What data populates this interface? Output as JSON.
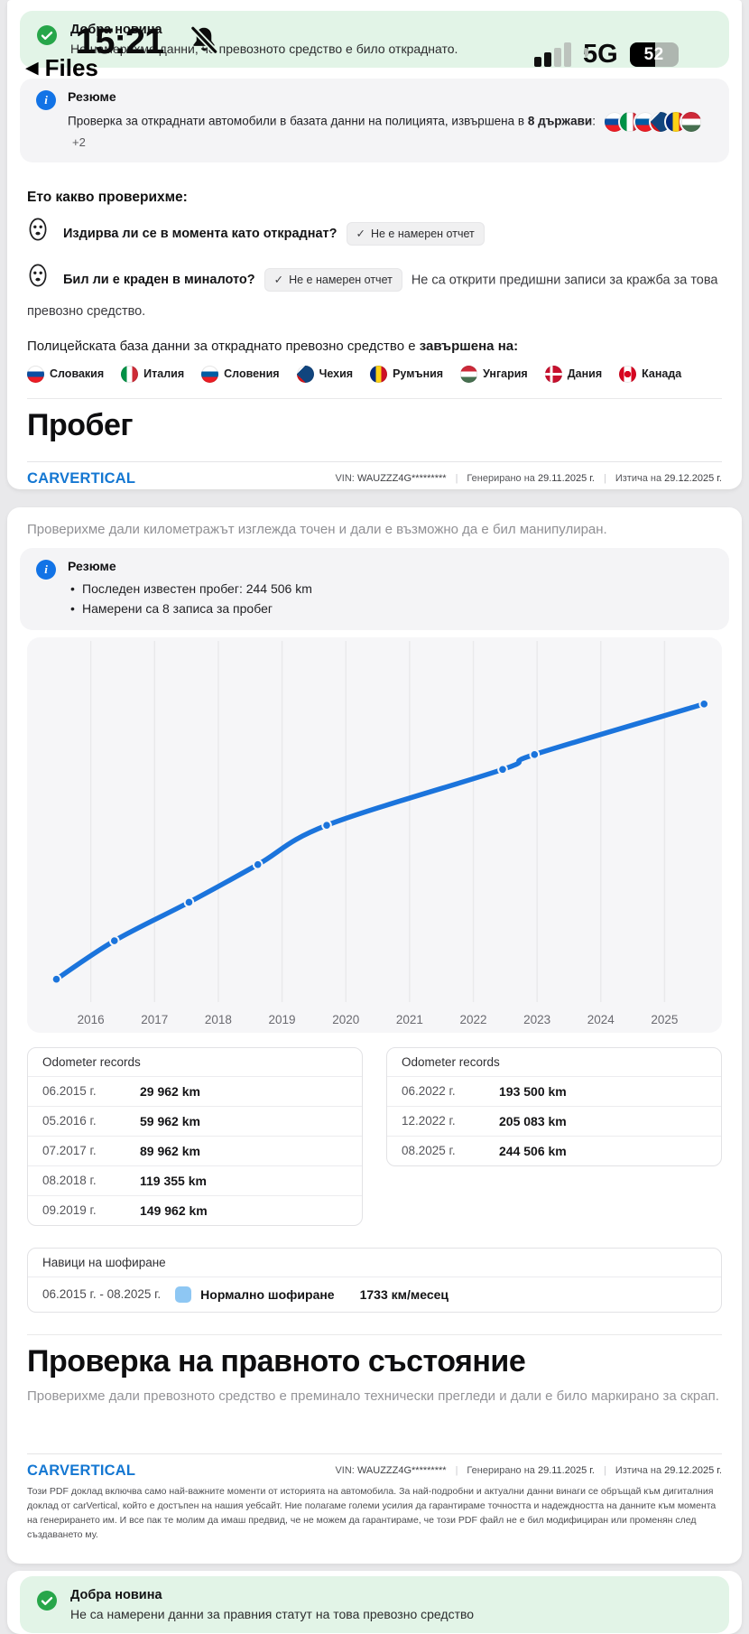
{
  "status_bar": {
    "time": "15:21",
    "back_label": "Files",
    "network": "5G",
    "battery_percent": "52"
  },
  "icons": {
    "back_arrow": "◀",
    "check": "✓",
    "info": "i",
    "bullet": "•"
  },
  "theme": {
    "accent_blue": "#1273e6",
    "chart_line_blue": "#1b74dc",
    "success_green": "#27a64a",
    "banner_green_bg": "#e2f4e7",
    "legend_light_blue": "#8ec7f3",
    "logo_blue": "#1477d2"
  },
  "page1": {
    "banner": {
      "title": "Добра новина",
      "text": "Не намерихме данни, че превозното средство е било откраднато."
    },
    "summary": {
      "title": "Резюме",
      "text": "Проверка за откраднати автомобили в базата данни на полицията, извършена в",
      "bold": "8 държави",
      "colon": ":",
      "flags": [
        "sk",
        "it",
        "si",
        "cz",
        "ro",
        "hu"
      ],
      "more": "+2"
    },
    "checks_heading": "Ето какво проверихме:",
    "checks": [
      {
        "question": "Издирва ли се в момента като откраднат?",
        "badge": "Не е намерен отчет",
        "note": ""
      },
      {
        "question": "Бил ли е краден в миналото?",
        "badge": "Не е намерен отчет",
        "note": "Не са открити предишни записи за кражба за това превозно средство."
      }
    ],
    "db_text": "Полицейската база данни за откраднато превозно средство е",
    "db_bold": "завършена на:",
    "countries": [
      {
        "flag": "sk",
        "name": "Словакия"
      },
      {
        "flag": "it",
        "name": "Италия"
      },
      {
        "flag": "si",
        "name": "Словения"
      },
      {
        "flag": "cz",
        "name": "Чехия"
      },
      {
        "flag": "ro",
        "name": "Румъния"
      },
      {
        "flag": "hu",
        "name": "Унгария"
      },
      {
        "flag": "dk",
        "name": "Дания"
      },
      {
        "flag": "ca",
        "name": "Канада"
      }
    ],
    "section_heading": "Пробег"
  },
  "footer": {
    "logo": "CARVERTICAL",
    "vin_label": "VIN:",
    "vin_value": "WAUZZZ4G*********",
    "generated_label": "Генерирано на",
    "generated_value": "29.11.2025 г.",
    "expires_label": "Изтича на",
    "expires_value": "29.12.2025 г.",
    "disclaimer": "Този PDF доклад включва само най-важните моменти от историята на автомобила. За най-подробни и актуални данни винаги се обръщай към дигиталния доклад от carVertical, който е достъпен на нашия уебсайт. Ние полагаме големи усилия да гарантираме точността и надеждността на данните към момента на генерирането им. И все пак те молим да имаш предвид, че не можем да гарантираме, че този PDF файл не е бил модифициран или променян след създаването му."
  },
  "page2": {
    "intro": "Проверихме дали километражът изглежда точен и дали е възможно да е бил манипулиран.",
    "summary": {
      "title": "Резюме",
      "bullets": [
        "Последен известен пробег: 244 506 km",
        "Намерени са 8 записа за пробег"
      ]
    },
    "odometer_tables": [
      {
        "title": "Odometer records",
        "rows": [
          {
            "date": "06.2015 г.",
            "value": "29 962 km"
          },
          {
            "date": "05.2016 г.",
            "value": "59 962 km"
          },
          {
            "date": "07.2017 г.",
            "value": "89 962 km"
          },
          {
            "date": "08.2018 г.",
            "value": "119 355 km"
          },
          {
            "date": "09.2019 г.",
            "value": "149 962 km"
          }
        ]
      },
      {
        "title": "Odometer records",
        "rows": [
          {
            "date": "06.2022 г.",
            "value": "193 500 km"
          },
          {
            "date": "12.2022 г.",
            "value": "205 083 km"
          },
          {
            "date": "08.2025 г.",
            "value": "244 506 km"
          }
        ]
      }
    ],
    "habits": {
      "title": "Навици на шофиране",
      "period": "06.2015 г. - 08.2025 г.",
      "label": "Нормално шофиране",
      "rate": "1733 км/месец"
    },
    "legal_heading": "Проверка на правното състояние",
    "legal_intro": "Проверихме дали превозното средство е преминало технически прегледи и дали е било маркирано за скрап."
  },
  "page3": {
    "banner": {
      "title": "Добра новина",
      "text": "Не са намерени данни за правния статут на това превозно средство"
    }
  },
  "chart_data": {
    "type": "line",
    "title": "",
    "xlabel": "",
    "ylabel": "",
    "point_labels": [
      "06.2015",
      "05.2016",
      "07.2017",
      "08.2018",
      "09.2019",
      "06.2022",
      "12.2022",
      "08.2025"
    ],
    "x": [
      2015.46,
      2016.37,
      2017.54,
      2018.62,
      2019.7,
      2022.46,
      2022.96,
      2025.62
    ],
    "values": [
      29962,
      59962,
      89962,
      119355,
      149962,
      193500,
      205083,
      244506
    ],
    "xticks": [
      2016,
      2017,
      2018,
      2019,
      2020,
      2021,
      2022,
      2023,
      2024,
      2025
    ],
    "xlim": [
      2015.0,
      2025.9
    ],
    "ylim": [
      15000,
      288000
    ],
    "grid": "vertical",
    "legend": "none",
    "line_color": "#1b74dc"
  }
}
